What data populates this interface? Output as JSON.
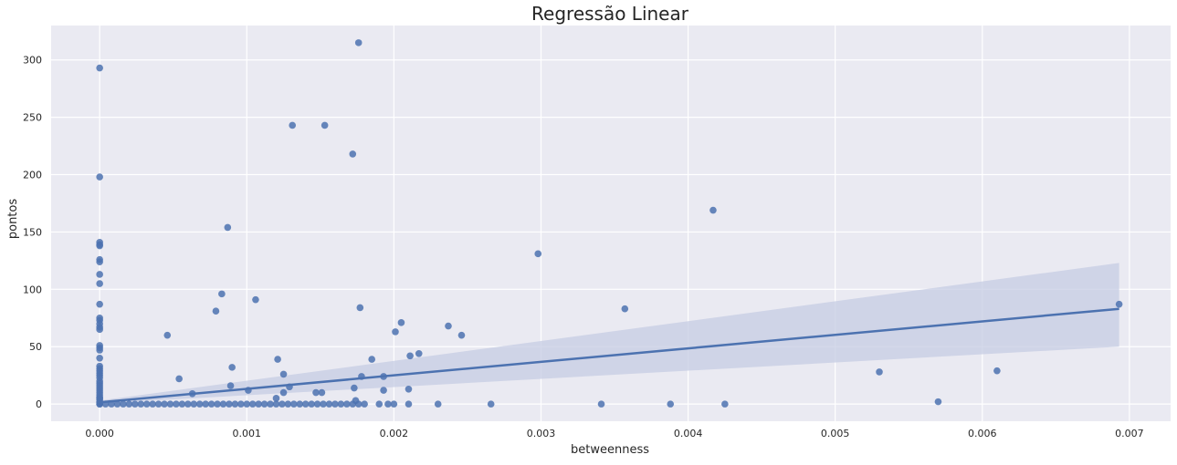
{
  "chart_data": {
    "type": "scatter",
    "title": "Regressão Linear",
    "xlabel": "betweenness",
    "ylabel": "pontos",
    "xlim": [
      -0.00033,
      0.00728
    ],
    "ylim": [
      -15,
      330
    ],
    "grid": true,
    "x_ticks": [
      0.0,
      0.001,
      0.002,
      0.003,
      0.004,
      0.005,
      0.006,
      0.007
    ],
    "x_tick_labels": [
      "0.000",
      "0.001",
      "0.002",
      "0.003",
      "0.004",
      "0.005",
      "0.006",
      "0.007"
    ],
    "y_ticks": [
      0,
      50,
      100,
      150,
      200,
      250,
      300
    ],
    "y_tick_labels": [
      "0",
      "50",
      "100",
      "150",
      "200",
      "250",
      "300"
    ],
    "colors": {
      "background": "#eaeaf2",
      "grid": "#ffffff",
      "points": "#4c72b0",
      "line": "#4c72b0",
      "band": "#c5cce3"
    },
    "regression": {
      "x": [
        0.0,
        0.00693
      ],
      "y": [
        1.5,
        83
      ],
      "ci_lower": [
        0.5,
        50
      ],
      "ci_upper": [
        3.0,
        123
      ]
    },
    "points": {
      "x": [
        0.0,
        0.0,
        0.0,
        0.0,
        0.0,
        0.0,
        0.0,
        0.0,
        0.0,
        0.0,
        0.0,
        0.0,
        0.0,
        0.0,
        0.0,
        0.0,
        0.0,
        0.0,
        0.0,
        0.0,
        0.0,
        0.0,
        0.0,
        0.0,
        0.0,
        0.0,
        0.0,
        0.0,
        0.0,
        0.0,
        0.0,
        0.0,
        0.0,
        0.0,
        0.0,
        0.0,
        0.0,
        4e-05,
        8e-05,
        0.00012,
        0.00016,
        0.0002,
        0.00024,
        0.00028,
        0.00032,
        0.00036,
        0.0004,
        0.00044,
        0.00048,
        0.00052,
        0.00056,
        0.0006,
        0.00064,
        0.00068,
        0.00072,
        0.00076,
        0.0008,
        0.00084,
        0.00088,
        0.00092,
        0.00096,
        0.001,
        0.00104,
        0.00108,
        0.00112,
        0.00116,
        0.0012,
        0.00124,
        0.00128,
        0.00132,
        0.00136,
        0.0014,
        0.00144,
        0.00148,
        0.00152,
        0.00156,
        0.0016,
        0.00164,
        0.00168,
        0.00172,
        0.00176,
        0.0018,
        0.0019,
        0.00196,
        0.002,
        0.0021,
        0.0023,
        0.00266,
        0.00341,
        0.00388,
        0.00425,
        0.00176,
        0.0,
        0.00131,
        0.00153,
        0.00172,
        0.0,
        0.00087,
        0.00417,
        0.00298,
        0.00083,
        0.00079,
        0.00106,
        0.00177,
        0.00357,
        0.00046,
        0.00205,
        0.00201,
        0.00237,
        0.00246,
        0.00217,
        0.00211,
        0.00185,
        0.00121,
        0.0009,
        0.00125,
        0.00178,
        0.00193,
        0.00054,
        0.00089,
        0.00101,
        0.00129,
        0.00147,
        0.00151,
        0.00125,
        0.00173,
        0.00193,
        0.0021,
        0.00063,
        0.0012,
        0.00174,
        0.0053,
        0.0061,
        0.0057,
        0.00693
      ],
      "y": [
        293,
        198,
        141,
        139,
        138,
        126,
        124,
        113,
        105,
        87,
        75,
        73,
        70,
        67,
        65,
        51,
        49,
        47,
        40,
        33,
        31,
        29,
        27,
        25,
        23,
        20,
        18,
        16,
        14,
        12,
        10,
        8,
        6,
        5,
        4,
        2,
        1,
        0,
        0,
        0,
        0,
        0,
        0,
        0,
        0,
        0,
        0,
        0,
        0,
        0,
        0,
        0,
        0,
        0,
        0,
        0,
        0,
        0,
        0,
        0,
        0,
        0,
        0,
        0,
        0,
        0,
        0,
        0,
        0,
        0,
        0,
        0,
        0,
        0,
        0,
        0,
        0,
        0,
        0,
        0,
        0,
        0,
        0,
        0,
        0,
        0,
        0,
        0,
        0,
        0,
        0,
        315,
        0,
        243,
        243,
        218,
        0,
        154,
        169,
        131,
        96,
        81,
        91,
        84,
        83,
        60,
        71,
        63,
        68,
        60,
        44,
        42,
        39,
        39,
        32,
        26,
        24,
        24,
        22,
        16,
        12,
        15,
        10,
        10,
        10,
        14,
        12,
        13,
        9,
        5,
        3,
        28,
        29,
        2,
        87
      ]
    }
  }
}
